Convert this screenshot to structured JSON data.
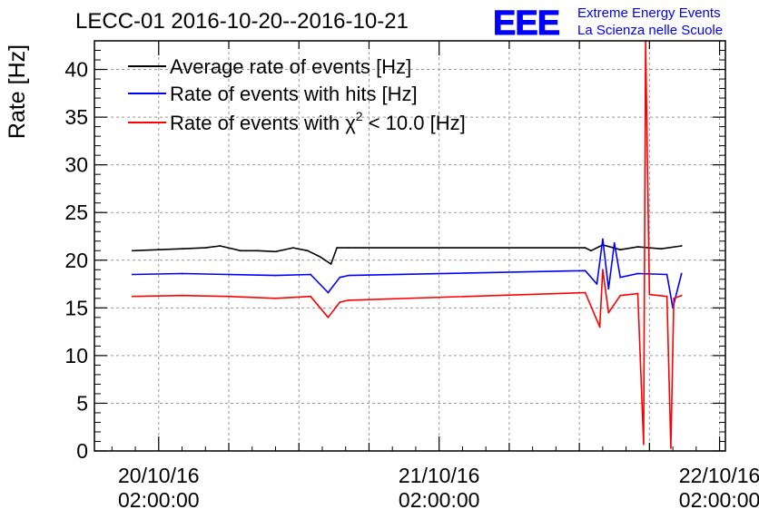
{
  "header": {
    "title": "LECC-01 2016-10-20--2016-10-21",
    "logo_text": "EEE",
    "logo_line1": "Extreme Energy Events",
    "logo_line2": "La Scienza nelle Scuole"
  },
  "colors": {
    "average": "#000000",
    "hits": "#0000ff",
    "chi2": "#ff0000",
    "logo": "#0000ff",
    "grid": "#999999"
  },
  "chart_data": {
    "type": "line",
    "ylabel": "Rate [Hz]",
    "xlabel": "",
    "ylim": [
      0,
      43
    ],
    "yticks": [
      0,
      5,
      10,
      15,
      20,
      25,
      30,
      35,
      40
    ],
    "xlim": [
      "2016-10-19T20:30:00",
      "2016-10-22T02:30:00"
    ],
    "xticks": [
      {
        "t": "2016-10-20T02:00:00",
        "date": "20/10/16",
        "time": "02:00:00"
      },
      {
        "t": "2016-10-21T02:00:00",
        "date": "21/10/16",
        "time": "02:00:00"
      },
      {
        "t": "2016-10-22T02:00:00",
        "date": "22/10/16",
        "time": "02:00:00"
      }
    ],
    "grid": true,
    "legend_position": "top-left",
    "legend": {
      "average": "Average rate of events [Hz]",
      "hits": "Rate of events with hits [Hz]",
      "chi2_prefix": "Rate of events with ",
      "chi2_symbol": "χ",
      "chi2_sup": "2",
      "chi2_suffix": " < 10.0 [Hz]"
    },
    "series": [
      {
        "name": "Average rate of events [Hz]",
        "key": "average",
        "points": [
          [
            "2016-10-19T23:45:00",
            21.0
          ],
          [
            "2016-10-20T02:00:00",
            21.1
          ],
          [
            "2016-10-20T04:00:00",
            21.2
          ],
          [
            "2016-10-20T06:00:00",
            21.3
          ],
          [
            "2016-10-20T07:15:00",
            21.5
          ],
          [
            "2016-10-20T09:00:00",
            21.0
          ],
          [
            "2016-10-20T10:30:00",
            21.0
          ],
          [
            "2016-10-20T12:00:00",
            20.9
          ],
          [
            "2016-10-20T13:30:00",
            21.3
          ],
          [
            "2016-10-20T14:45:00",
            21.0
          ],
          [
            "2016-10-20T15:45:00",
            20.4
          ],
          [
            "2016-10-20T16:45:00",
            19.6
          ],
          [
            "2016-10-20T17:15:00",
            21.3
          ],
          [
            "2016-10-20T18:15:00",
            21.3
          ],
          [
            "2016-10-21T14:30:00",
            21.3
          ],
          [
            "2016-10-21T15:00:00",
            21.0
          ],
          [
            "2016-10-21T16:00:00",
            21.6
          ],
          [
            "2016-10-21T17:30:00",
            21.1
          ],
          [
            "2016-10-21T19:00:00",
            21.4
          ],
          [
            "2016-10-21T21:00:00",
            21.2
          ],
          [
            "2016-10-21T22:45:00",
            21.5
          ]
        ]
      },
      {
        "name": "Rate of events with hits [Hz]",
        "key": "hits",
        "points": [
          [
            "2016-10-19T23:45:00",
            18.5
          ],
          [
            "2016-10-20T04:00:00",
            18.6
          ],
          [
            "2016-10-20T08:00:00",
            18.5
          ],
          [
            "2016-10-20T12:00:00",
            18.4
          ],
          [
            "2016-10-20T15:00:00",
            18.5
          ],
          [
            "2016-10-20T16:30:00",
            16.6
          ],
          [
            "2016-10-20T17:30:00",
            18.2
          ],
          [
            "2016-10-20T18:15:00",
            18.4
          ],
          [
            "2016-10-21T14:30:00",
            18.9
          ],
          [
            "2016-10-21T15:30:00",
            17.5
          ],
          [
            "2016-10-21T16:00:00",
            22.2
          ],
          [
            "2016-10-21T16:30:00",
            17.0
          ],
          [
            "2016-10-21T17:00:00",
            21.8
          ],
          [
            "2016-10-21T17:30:00",
            18.2
          ],
          [
            "2016-10-21T19:00:00",
            18.6
          ],
          [
            "2016-10-21T21:30:00",
            18.5
          ],
          [
            "2016-10-21T22:00:00",
            15.0
          ],
          [
            "2016-10-21T22:45:00",
            18.6
          ]
        ]
      },
      {
        "name": "Rate of events with χ2 < 10.0 [Hz]",
        "key": "chi2",
        "points": [
          [
            "2016-10-19T23:45:00",
            16.2
          ],
          [
            "2016-10-20T04:00:00",
            16.3
          ],
          [
            "2016-10-20T08:00:00",
            16.2
          ],
          [
            "2016-10-20T12:00:00",
            16.0
          ],
          [
            "2016-10-20T15:00:00",
            16.2
          ],
          [
            "2016-10-20T16:30:00",
            14.0
          ],
          [
            "2016-10-20T17:30:00",
            15.6
          ],
          [
            "2016-10-20T18:15:00",
            15.8
          ],
          [
            "2016-10-21T14:30:00",
            16.6
          ],
          [
            "2016-10-21T15:45:00",
            13.0
          ],
          [
            "2016-10-21T16:00:00",
            19.0
          ],
          [
            "2016-10-21T16:30:00",
            14.5
          ],
          [
            "2016-10-21T17:30:00",
            16.3
          ],
          [
            "2016-10-21T19:00:00",
            16.5
          ],
          [
            "2016-10-21T19:30:00",
            0.7
          ],
          [
            "2016-10-21T19:40:00",
            43.0
          ],
          [
            "2016-10-21T20:00:00",
            16.4
          ],
          [
            "2016-10-21T21:30:00",
            16.2
          ],
          [
            "2016-10-21T21:50:00",
            0.3
          ],
          [
            "2016-10-21T22:05:00",
            16.0
          ],
          [
            "2016-10-21T22:45:00",
            16.3
          ]
        ]
      }
    ]
  }
}
